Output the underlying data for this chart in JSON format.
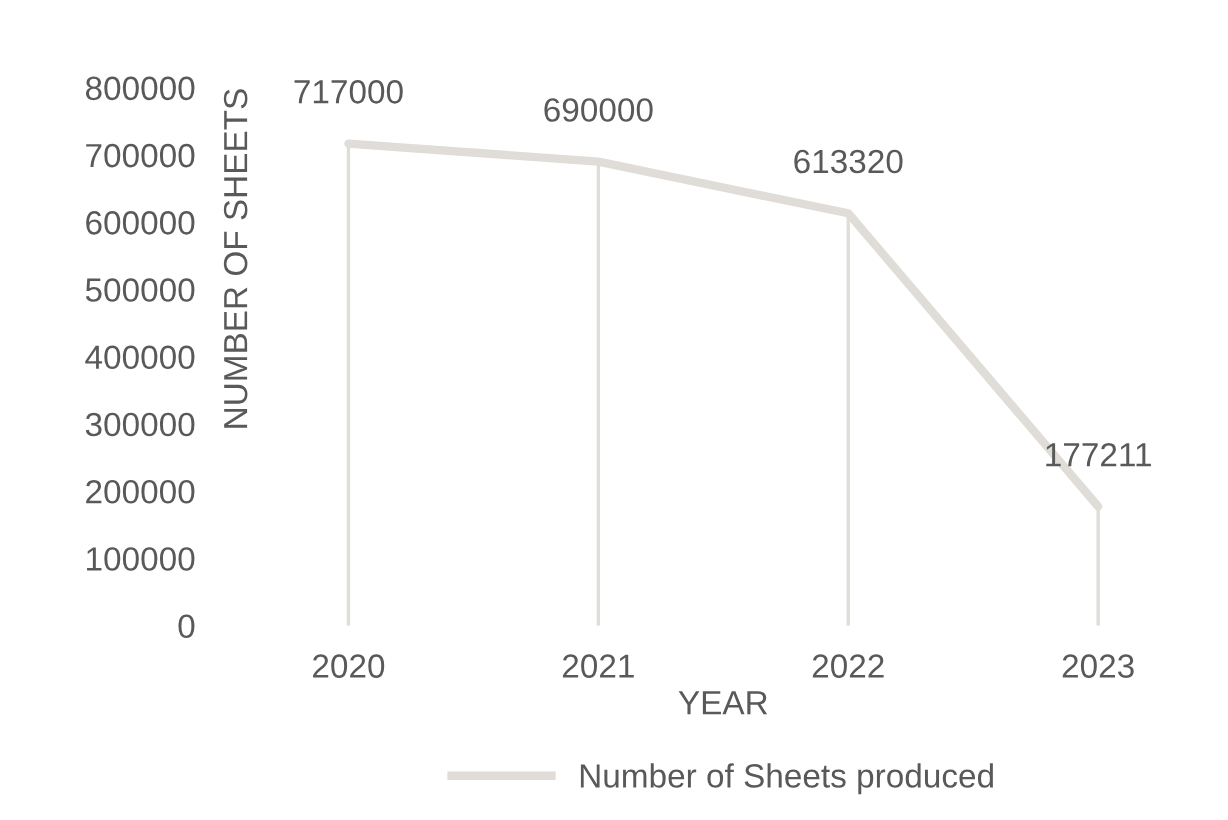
{
  "chart_data": {
    "type": "line",
    "xlabel": "YEAR",
    "ylabel": "NUMBER OF SHEETS",
    "categories": [
      "2020",
      "2021",
      "2022",
      "2023"
    ],
    "series": [
      {
        "name": "Number of Sheets produced",
        "color": "#e0ddd8",
        "values": [
          717000,
          690000,
          613320,
          177211
        ]
      }
    ],
    "ylim": [
      0,
      800000
    ],
    "yticks": [
      0,
      100000,
      200000,
      300000,
      400000,
      500000,
      600000,
      700000,
      800000
    ],
    "data_labels": true,
    "legend": "bottom",
    "grid": "x",
    "marker": "none",
    "line_style": "solid"
  }
}
